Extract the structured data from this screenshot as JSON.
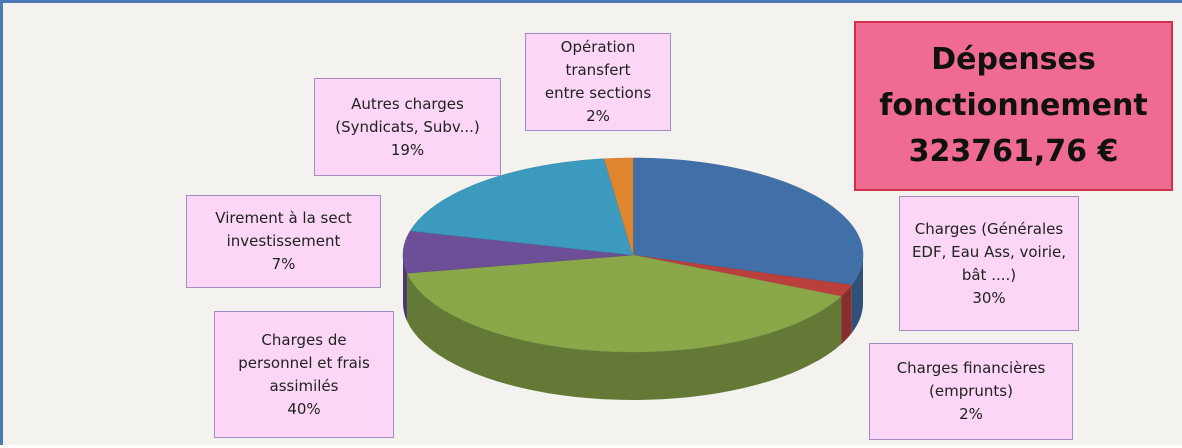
{
  "chart_data": {
    "type": "pie",
    "title": "Dépenses\nfonctionnement\n323761,76 €",
    "categories": [
      "Charges  (Générales\nEDF, Eau Ass, voirie,\nbât ....)",
      "Charges financières\n(emprunts)",
      "Charges  de\npersonnel et frais\nassimilés",
      "Virement à la sect\ninvestissement",
      "Autres charges\n(Syndicats, Subv...)",
      "Opération transfert\nentre sections"
    ],
    "values": [
      30,
      2,
      40,
      7,
      19,
      2
    ],
    "value_labels": [
      "30%",
      "2%",
      "40%",
      "7%",
      "19%",
      "2%"
    ],
    "colors": [
      "#4170a8",
      "#b9403c",
      "#8aa84a",
      "#6c4f96",
      "#3b9abd",
      "#e0862f"
    ]
  }
}
